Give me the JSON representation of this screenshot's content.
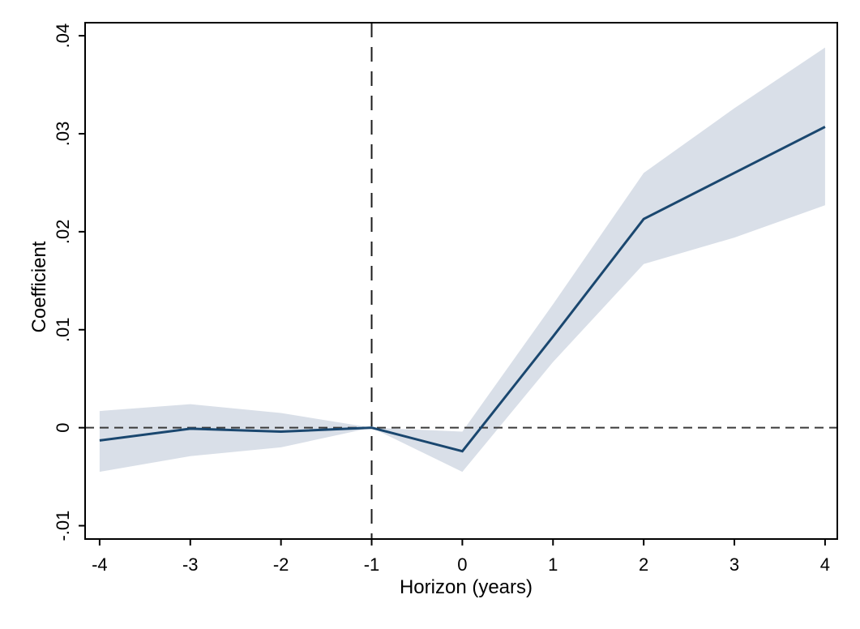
{
  "chart_data": {
    "type": "line",
    "title": "",
    "xlabel": "Horizon (years)",
    "ylabel": "Coefficient",
    "x": [
      -4,
      -3,
      -2,
      -1,
      0,
      1,
      2,
      3,
      4
    ],
    "series": [
      {
        "name": "coefficient",
        "values": [
          -0.0013,
          -0.0001,
          -0.0004,
          0,
          -0.0024,
          0.0093,
          0.0213,
          0.026,
          0.0307
        ]
      },
      {
        "name": "ci_lower",
        "values": [
          -0.0045,
          -0.0029,
          -0.002,
          0,
          -0.0045,
          0.0067,
          0.0167,
          0.0194,
          0.0227
        ]
      },
      {
        "name": "ci_upper",
        "values": [
          0.0017,
          0.0024,
          0.0015,
          0,
          -0.0004,
          0.0126,
          0.026,
          0.0326,
          0.0388
        ]
      }
    ],
    "x_ticks": {
      "values": [
        -4,
        -3,
        -2,
        -1,
        0,
        1,
        2,
        3,
        4
      ],
      "labels": [
        "-4",
        "-3",
        "-2",
        "-1",
        "0",
        "1",
        "2",
        "3",
        "4"
      ]
    },
    "y_ticks": {
      "values": [
        -0.01,
        0,
        0.01,
        0.02,
        0.03,
        0.04
      ],
      "labels": [
        "-.01",
        "0",
        ".01",
        ".02",
        ".03",
        ".04"
      ]
    },
    "xlim": [
      -4.16,
      4.135
    ],
    "ylim": [
      -0.01136,
      0.04133
    ],
    "grid": false,
    "legend": "none",
    "reference_lines": [
      {
        "orientation": "horizontal",
        "value": 0,
        "style": "dashed"
      },
      {
        "orientation": "vertical",
        "value": -1,
        "style": "dashed"
      }
    ],
    "colors": {
      "line": "#1a476f",
      "band": "#d9dfe8",
      "reference_h": "#3a3a3a",
      "reference_v": "#1c1c1c",
      "axis": "#000000",
      "background": "#ffffff"
    }
  }
}
